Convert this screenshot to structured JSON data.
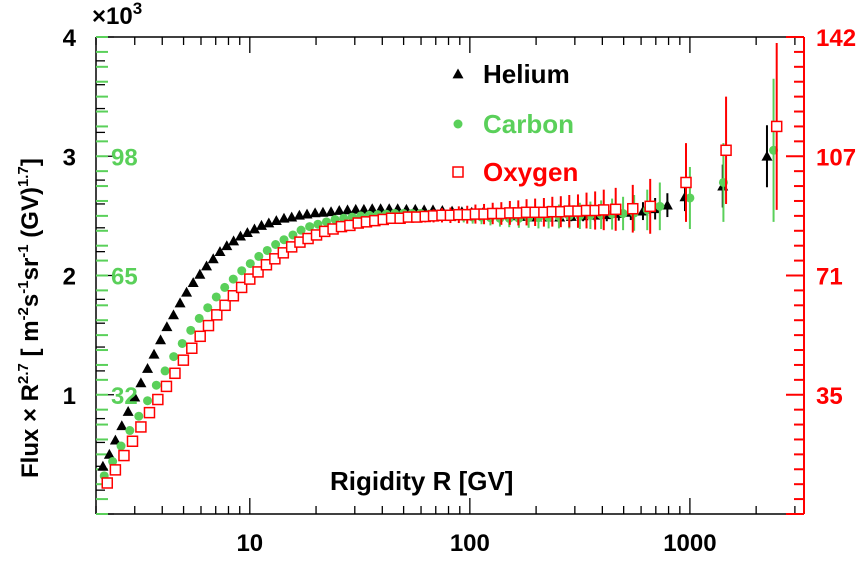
{
  "chart_data": {
    "type": "scatter",
    "xscale": "log",
    "xlim": [
      2,
      3300
    ],
    "ylim": [
      0,
      4000
    ],
    "xlabel_prefix": "Rigidity",
    "xlabel_symbol": "R",
    "xlabel_unit": "[GV]",
    "ylabel": "Flux × R^2.7 [ m^-2 s^-1 sr^-1 (GV)^1.7 ]",
    "y_exponent_label": "×10",
    "y_exponent_power": "3",
    "left_ticks": [
      {
        "value": 1000,
        "label": "1"
      },
      {
        "value": 2000,
        "label": "2"
      },
      {
        "value": 3000,
        "label": "3"
      },
      {
        "value": 4000,
        "label": "4"
      }
    ],
    "inner_ticks": [
      {
        "value": 1000,
        "label": "32"
      },
      {
        "value": 2000,
        "label": "65"
      },
      {
        "value": 3000,
        "label": "98"
      }
    ],
    "right_ticks": [
      {
        "value": 1000,
        "label": "35"
      },
      {
        "value": 2000,
        "label": "71"
      },
      {
        "value": 3000,
        "label": "107"
      },
      {
        "value": 4000,
        "label": "142"
      }
    ],
    "x_ticks": [
      {
        "value": 10,
        "label": "10"
      },
      {
        "value": 100,
        "label": "100"
      },
      {
        "value": 1000,
        "label": "1000"
      }
    ],
    "colors": {
      "helium": "#000000",
      "carbon": "#5ad05a",
      "oxygen": "#ff0000",
      "right_axis": "#ff0000",
      "inner_axis": "#5ad05a"
    },
    "series": [
      {
        "name": "Helium",
        "marker": "triangle",
        "color": "#000000",
        "x": [
          2.15,
          2.3,
          2.45,
          2.62,
          2.8,
          3.0,
          3.2,
          3.43,
          3.67,
          3.93,
          4.2,
          4.5,
          4.82,
          5.16,
          5.53,
          5.93,
          6.36,
          6.82,
          7.32,
          7.86,
          8.44,
          9.07,
          9.75,
          10.5,
          11.3,
          12.2,
          13.2,
          14.3,
          15.5,
          16.8,
          18.2,
          19.8,
          21.5,
          23.4,
          25.5,
          27.8,
          30.3,
          33.0,
          36.0,
          39.3,
          43.0,
          47.0,
          51.5,
          56.5,
          62.0,
          68.0,
          75.0,
          83.0,
          92.0,
          102,
          114,
          127,
          142,
          159,
          179,
          201,
          227,
          256,
          289,
          327,
          370,
          419,
          475,
          539,
          612,
          695,
          790,
          950,
          1410,
          2240
        ],
        "y": [
          400,
          500,
          620,
          740,
          860,
          980,
          1100,
          1220,
          1340,
          1460,
          1570,
          1670,
          1770,
          1860,
          1940,
          2010,
          2080,
          2140,
          2200,
          2250,
          2290,
          2330,
          2360,
          2390,
          2420,
          2440,
          2460,
          2480,
          2490,
          2505,
          2515,
          2525,
          2530,
          2535,
          2545,
          2550,
          2555,
          2555,
          2560,
          2560,
          2560,
          2560,
          2555,
          2555,
          2550,
          2550,
          2545,
          2540,
          2535,
          2530,
          2525,
          2520,
          2510,
          2500,
          2495,
          2490,
          2490,
          2490,
          2495,
          2500,
          2505,
          2510,
          2520,
          2530,
          2540,
          2560,
          2590,
          2660,
          2750,
          3000
        ],
        "err": [
          0,
          0,
          0,
          0,
          0,
          0,
          0,
          0,
          0,
          0,
          0,
          0,
          0,
          0,
          0,
          0,
          0,
          0,
          0,
          0,
          0,
          0,
          0,
          0,
          0,
          0,
          0,
          0,
          0,
          0,
          0,
          0,
          0,
          0,
          0,
          0,
          0,
          0,
          0,
          0,
          0,
          0,
          0,
          0,
          0,
          10,
          10,
          10,
          12,
          15,
          15,
          20,
          20,
          25,
          25,
          30,
          30,
          35,
          40,
          45,
          50,
          55,
          60,
          65,
          75,
          90,
          100,
          120,
          180,
          260
        ]
      },
      {
        "name": "Carbon",
        "marker": "circle",
        "color": "#5ad05a",
        "x": [
          2.18,
          2.38,
          2.6,
          2.85,
          3.13,
          3.43,
          3.76,
          4.12,
          4.51,
          4.93,
          5.39,
          5.89,
          6.44,
          7.04,
          7.69,
          8.41,
          9.19,
          10.05,
          10.99,
          12.0,
          13.1,
          14.3,
          15.7,
          17.1,
          18.7,
          20.4,
          22.3,
          24.4,
          26.7,
          29.2,
          31.9,
          34.9,
          38.1,
          41.7,
          45.6,
          49.9,
          54.6,
          59.7,
          65.3,
          71.5,
          78.3,
          85.7,
          93.8,
          103,
          113,
          124,
          137,
          151,
          167,
          185,
          205,
          228,
          254,
          283,
          316,
          353,
          395,
          443,
          497,
          558,
          640,
          730,
          1000,
          1420,
          2400
        ],
        "y": [
          320,
          440,
          570,
          700,
          820,
          950,
          1080,
          1200,
          1320,
          1430,
          1540,
          1640,
          1730,
          1820,
          1900,
          1970,
          2040,
          2100,
          2160,
          2210,
          2260,
          2300,
          2340,
          2380,
          2410,
          2430,
          2450,
          2470,
          2480,
          2490,
          2500,
          2505,
          2510,
          2515,
          2520,
          2520,
          2520,
          2520,
          2515,
          2510,
          2505,
          2500,
          2495,
          2490,
          2490,
          2485,
          2480,
          2480,
          2480,
          2485,
          2485,
          2490,
          2495,
          2500,
          2500,
          2505,
          2510,
          2515,
          2520,
          2525,
          2550,
          2580,
          2650,
          2780,
          3050
        ],
        "err": [
          0,
          0,
          0,
          0,
          0,
          0,
          0,
          0,
          0,
          0,
          0,
          0,
          0,
          0,
          0,
          0,
          0,
          0,
          0,
          0,
          0,
          0,
          0,
          0,
          0,
          0,
          0,
          0,
          0,
          0,
          0,
          0,
          0,
          0,
          0,
          0,
          20,
          25,
          30,
          35,
          40,
          45,
          50,
          55,
          60,
          65,
          70,
          75,
          80,
          85,
          90,
          95,
          100,
          105,
          110,
          115,
          120,
          130,
          140,
          150,
          170,
          200,
          260,
          330,
          600
        ]
      },
      {
        "name": "Oxygen",
        "marker": "open-square",
        "color": "#ff0000",
        "x": [
          2.25,
          2.45,
          2.68,
          2.93,
          3.2,
          3.5,
          3.82,
          4.18,
          4.57,
          4.99,
          5.45,
          5.95,
          6.49,
          7.08,
          7.72,
          8.42,
          9.18,
          10.0,
          10.9,
          11.9,
          13.0,
          14.2,
          15.5,
          16.9,
          18.4,
          20.1,
          21.9,
          23.9,
          26.1,
          28.5,
          31.1,
          33.9,
          37.0,
          40.4,
          44.1,
          48.2,
          52.6,
          57.4,
          62.7,
          68.4,
          74.7,
          81.6,
          89.1,
          97.3,
          106,
          116,
          127,
          139,
          152,
          166,
          181,
          198,
          217,
          237,
          259,
          283,
          310,
          339,
          371,
          406,
          460,
          550,
          660,
          960,
          1460,
          2480
        ],
        "y": [
          260,
          370,
          490,
          610,
          730,
          850,
          960,
          1070,
          1180,
          1290,
          1390,
          1490,
          1580,
          1670,
          1750,
          1830,
          1900,
          1970,
          2030,
          2090,
          2140,
          2190,
          2240,
          2280,
          2310,
          2340,
          2370,
          2390,
          2410,
          2420,
          2440,
          2450,
          2460,
          2470,
          2480,
          2480,
          2490,
          2490,
          2495,
          2500,
          2505,
          2505,
          2510,
          2510,
          2515,
          2515,
          2520,
          2520,
          2525,
          2525,
          2530,
          2530,
          2530,
          2535,
          2535,
          2540,
          2540,
          2545,
          2545,
          2550,
          2555,
          2560,
          2580,
          2780,
          3050,
          3250
        ],
        "err": [
          0,
          0,
          0,
          0,
          0,
          0,
          0,
          0,
          0,
          0,
          0,
          0,
          0,
          0,
          0,
          0,
          0,
          0,
          0,
          0,
          0,
          0,
          0,
          0,
          0,
          0,
          0,
          0,
          0,
          0,
          0,
          0,
          0,
          0,
          0,
          0,
          40,
          45,
          50,
          55,
          60,
          65,
          70,
          75,
          80,
          85,
          90,
          95,
          100,
          105,
          110,
          115,
          120,
          125,
          130,
          135,
          140,
          150,
          160,
          170,
          180,
          200,
          230,
          330,
          450,
          700
        ]
      }
    ],
    "legend_position": "top-right"
  }
}
